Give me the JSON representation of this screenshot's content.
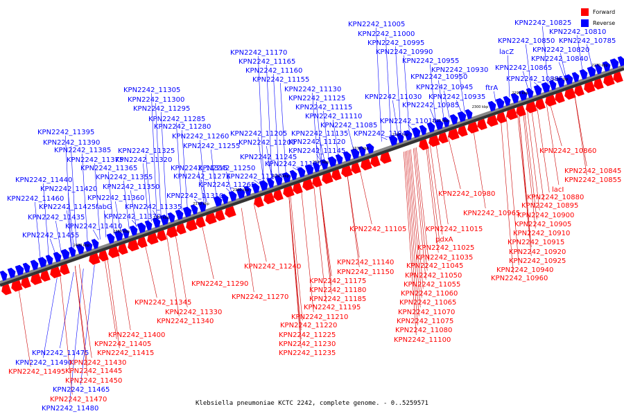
{
  "caption": "Klebsiella pneumoniae KCTC 2242, complete genome. - 0..5259571",
  "legend": [
    {
      "label": "Forward",
      "color": "#ff0000"
    },
    {
      "label": "Reverse",
      "color": "#0000ff"
    }
  ],
  "colors": {
    "forward": "#ff0000",
    "reverse": "#0000ff",
    "backbone": "#888888",
    "leader_forward": "#cc0000",
    "leader_reverse": "#0000ff"
  },
  "scale_ticks": [
    "2270 kbp",
    "2280 kbp",
    "2290 kbp",
    "2300 kbp",
    "2310 kbp",
    "2320 kbp",
    "2330 kbp",
    "2340 kbp",
    "2350 kbp",
    "2360 kbp",
    "2370 kbp",
    "2380 kbp",
    "2390 kbp",
    "2400 kbp"
  ],
  "reverse_labels": [
    "KPN2242_10825",
    "KPN2242_10810",
    "KPN2242_10850",
    "KPN2242_10785",
    "lacZ",
    "KPN2242_10820",
    "KPN2242_10840",
    "KPN2242_10865",
    "KPN2242_10885",
    "ftrA",
    "KPN2242_11005",
    "KPN2242_11000",
    "KPN2242_10995",
    "KPN2242_10990",
    "KPN2242_10955",
    "KPN2242_10930",
    "KPN2242_10950",
    "KPN2242_10945",
    "KPN2242_11030",
    "KPN2242_10935",
    "KPN2242_10985",
    "KPN2242_11010",
    "KPN2242_11085",
    "KPN2242_11040",
    "KPN2242_11170",
    "KPN2242_11165",
    "KPN2242_11160",
    "KPN2242_11155",
    "KPN2242_11130",
    "KPN2242_11125",
    "KPN2242_11115",
    "KPN2242_11110",
    "KPN2242_11135",
    "KPN2242_11120",
    "KPN2242_11145",
    "KPN2242_11305",
    "KPN2242_11300",
    "KPN2242_11295",
    "KPN2242_11285",
    "KPN2242_11280",
    "KPN2242_11260",
    "KPN2242_11205",
    "KPN2242_11255",
    "KPN2242_11200",
    "KPN2242_11245",
    "KPN2242_11250",
    "KPN2242_11190",
    "KPN2242_11215",
    "KPN2242_11265",
    "KPN2242_11310",
    "KPN2242_11275",
    "KPN2242_11315",
    "KPN2242_11325",
    "KPN2242_11320",
    "KPN2242_11365",
    "KPN2242_11355",
    "KPN2242_11350",
    "KPN2242_11360",
    "KPN2242_11335",
    "KPN2242_11370",
    "KPN2242_11410",
    "KPN2242_11395",
    "KPN2242_11390",
    "KPN2242_11385",
    "KPN2242_11375",
    "KPN2242_11440",
    "KPN2242_11420",
    "KPN2242_11460",
    "KPN2242_11425",
    "fabG",
    "KPN2242_11435",
    "KPN2242_11455",
    "KPN2242_11475",
    "KPN2242_11490",
    "KPN2242_11465",
    "KPN2242_11480"
  ],
  "forward_labels": [
    "KPN2242_10860",
    "KPN2242_10845",
    "KPN2242_10855",
    "lacI",
    "KPN2242_10880",
    "KPN2242_10895",
    "KPN2242_10900",
    "KPN2242_10905",
    "KPN2242_10910",
    "KPN2242_10915",
    "KPN2242_10920",
    "KPN2242_10925",
    "KPN2242_10940",
    "KPN2242_10960",
    "KPN2242_10980",
    "KPN2242_10965",
    "KPN2242_11105",
    "KPN2242_11015",
    "pdxA",
    "KPN2242_11025",
    "KPN2242_11035",
    "KPN2242_11045",
    "KPN2242_11050",
    "KPN2242_11055",
    "KPN2242_11060",
    "KPN2242_11065",
    "KPN2242_11070",
    "KPN2242_11075",
    "KPN2242_11080",
    "KPN2242_11100",
    "KPN2242_11140",
    "KPN2242_11150",
    "KPN2242_11175",
    "KPN2242_11180",
    "KPN2242_11185",
    "KPN2242_11195",
    "KPN2242_11210",
    "KPN2242_11220",
    "KPN2242_11225",
    "KPN2242_11230",
    "KPN2242_11235",
    "KPN2242_11240",
    "KPN2242_11290",
    "KPN2242_11270",
    "KPN2242_11345",
    "KPN2242_11330",
    "KPN2242_11340",
    "KPN2242_11400",
    "KPN2242_11405",
    "KPN2242_11415",
    "KPN2242_11430",
    "KPN2242_11445",
    "KPN2242_11450",
    "KPN2242_11495",
    "KPN2242_11470"
  ]
}
